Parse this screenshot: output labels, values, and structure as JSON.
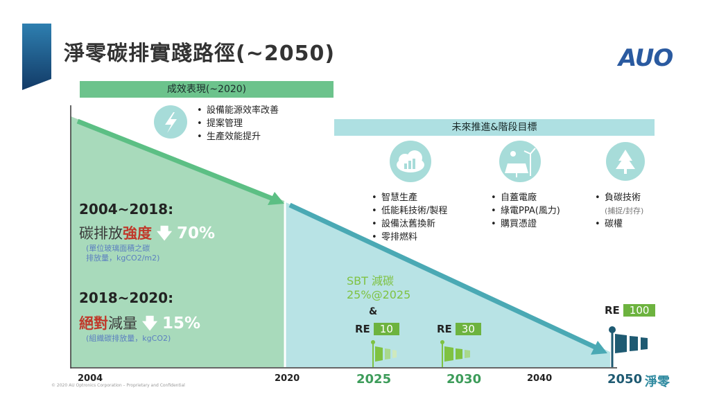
{
  "title": "淨零碳排實踐路徑(~2050)",
  "logo": "AUO",
  "banners": {
    "achieved": "成效表現(~2020)",
    "future": "未來推進&階段目標"
  },
  "achieved_items": [
    "設備能源效率改善",
    "提案管理",
    "生產效能提升"
  ],
  "period1": {
    "head": "2004~2018:",
    "label_pre": "碳排放",
    "label_red": "強度",
    "pct": "70%",
    "note": "(單位玻璃面積之碳\n排放量，kgCO2/m2)"
  },
  "period2": {
    "head": "2018~2020:",
    "label_red": "絕對",
    "label_post": "減量",
    "pct": "15%",
    "note": "(組織碳排放量，kgCO2)"
  },
  "future_groups": [
    {
      "icon": "cloud-chart-icon",
      "items": [
        "智慧生產",
        "低能耗技術/製程",
        "設備汰舊換新",
        "零排燃料"
      ]
    },
    {
      "icon": "solar-wind-icon",
      "items": [
        "自蓋電廠",
        "綠電PPA(風力)",
        "購買憑證"
      ]
    },
    {
      "icon": "tree-icon",
      "items": [
        "負碳技術",
        "(捕捉/封存)",
        "碳權"
      ]
    }
  ],
  "sbt": {
    "line1": "SBT 減碳",
    "line2": "25%@2025",
    "amp": "&"
  },
  "re_targets": [
    {
      "prefix": "RE",
      "value": "10"
    },
    {
      "prefix": "RE",
      "value": "30"
    },
    {
      "prefix": "RE",
      "value": "100"
    }
  ],
  "axis": {
    "y2004": "2004",
    "y2020": "2020",
    "y2025": "2025",
    "y2030": "2030",
    "y2040": "2040",
    "y2050": "2050",
    "net_zero": "淨零"
  },
  "copyright": "© 2020 AU Optronics Corporation – Proprietary and Confidential",
  "colors": {
    "achieved_green": "#6cc38c",
    "future_teal": "#aee0e2",
    "arrow_green": "#5cbf84",
    "arrow_teal": "#4aa9b4",
    "re_green": "#6db33f"
  }
}
